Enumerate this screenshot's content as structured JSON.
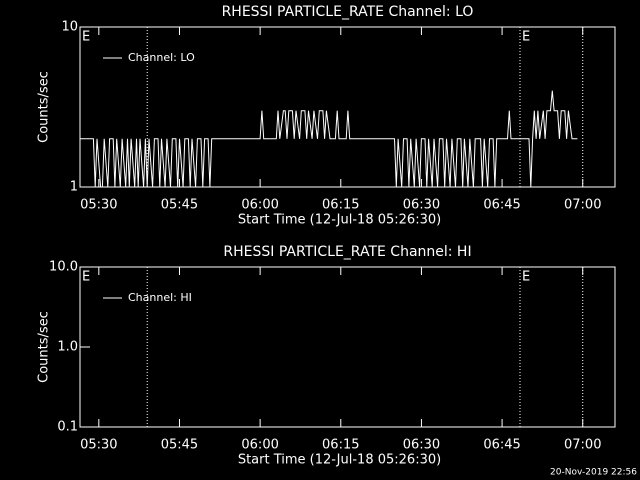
{
  "chart_data": [
    {
      "type": "line",
      "title": "RHESSI PARTICLE_RATE Channel: LO",
      "x_label": "Start Time (12-Jul-18 05:26:30)",
      "y_label": "Counts/sec",
      "xlim": [
        "05:26:30",
        "07:06:00"
      ],
      "xticks": [
        "05:30",
        "05:45",
        "06:00",
        "06:15",
        "06:30",
        "06:45",
        "07:00"
      ],
      "ylim": [
        1,
        10
      ],
      "yticks": [
        1,
        10
      ],
      "log_y": true,
      "legend": "upper left",
      "vlines": [
        "05:39:00",
        "06:48:20",
        "07:00:00"
      ],
      "annotations": [
        {
          "x": "05:26:30",
          "text": "E"
        },
        {
          "x": "06:48:20",
          "text": "E"
        }
      ],
      "series": [
        {
          "name": "Channel: LO",
          "color": "#ffffff",
          "x": [
            "05:26:30",
            "05:29:00",
            "05:29:20",
            "05:29:40",
            "05:30:20",
            "05:30:40",
            "05:31:00",
            "05:31:40",
            "05:32:00",
            "05:32:40",
            "05:33:00",
            "05:33:20",
            "05:34:00",
            "05:34:20",
            "05:35:00",
            "05:35:20",
            "05:35:40",
            "05:36:00",
            "05:36:40",
            "05:37:00",
            "05:37:20",
            "05:37:40",
            "05:38:20",
            "05:38:40",
            "05:39:00",
            "05:39:20",
            "05:40:00",
            "05:40:20",
            "05:41:00",
            "05:41:20",
            "05:41:40",
            "05:42:20",
            "05:42:40",
            "05:43:20",
            "05:43:40",
            "05:44:20",
            "05:44:40",
            "05:45:00",
            "05:45:40",
            "05:46:00",
            "05:46:40",
            "05:47:00",
            "05:47:20",
            "05:48:00",
            "05:48:20",
            "05:49:00",
            "05:49:20",
            "05:49:40",
            "05:50:20",
            "05:50:40",
            "05:51:00",
            "06:00:00",
            "06:00:20",
            "06:00:40",
            "06:03:00",
            "06:03:20",
            "06:03:40",
            "06:04:20",
            "06:04:40",
            "06:05:00",
            "06:05:20",
            "06:06:00",
            "06:06:20",
            "06:06:40",
            "06:07:20",
            "06:07:40",
            "06:08:20",
            "06:08:40",
            "06:09:00",
            "06:09:40",
            "06:10:00",
            "06:10:40",
            "06:11:00",
            "06:11:40",
            "06:12:00",
            "06:12:20",
            "06:13:00",
            "06:14:00",
            "06:14:20",
            "06:14:40",
            "06:16:00",
            "06:16:20",
            "06:16:40",
            "06:25:00",
            "06:25:20",
            "06:25:40",
            "06:26:20",
            "06:26:40",
            "06:27:20",
            "06:27:40",
            "06:28:00",
            "06:28:40",
            "06:29:00",
            "06:29:40",
            "06:30:00",
            "06:30:40",
            "06:31:00",
            "06:31:20",
            "06:32:00",
            "06:32:20",
            "06:33:00",
            "06:33:20",
            "06:34:00",
            "06:34:20",
            "06:34:40",
            "06:35:20",
            "06:35:40",
            "06:36:20",
            "06:36:40",
            "06:37:20",
            "06:37:40",
            "06:38:00",
            "06:38:40",
            "06:39:00",
            "06:39:40",
            "06:40:00",
            "06:41:00",
            "06:41:20",
            "06:41:40",
            "06:42:20",
            "06:42:40",
            "06:43:20",
            "06:43:40",
            "06:44:00",
            "06:46:00",
            "06:46:20",
            "06:46:40",
            "06:50:00",
            "06:50:20",
            "06:50:40",
            "06:51:00",
            "06:51:20",
            "06:51:40",
            "06:52:00",
            "06:52:40",
            "06:53:00",
            "06:53:20",
            "06:54:00",
            "06:54:20",
            "06:54:40",
            "06:55:20",
            "06:55:40",
            "06:56:00",
            "06:56:40",
            "06:57:00",
            "06:57:20",
            "06:58:00",
            "06:59:00"
          ],
          "values": [
            2,
            2,
            1,
            2,
            1,
            1,
            2,
            1,
            2,
            2,
            1,
            2,
            1,
            2,
            1,
            2,
            1,
            2,
            1,
            2,
            1,
            2,
            1,
            2,
            1,
            2,
            1,
            2,
            2,
            1,
            2,
            1,
            2,
            1,
            2,
            2,
            1,
            2,
            1,
            2,
            2,
            1,
            2,
            1,
            2,
            2,
            1,
            2,
            2,
            1,
            2,
            2,
            3,
            2,
            2,
            3,
            2,
            3,
            3,
            2,
            3,
            3,
            2,
            3,
            2,
            3,
            3,
            2,
            3,
            2,
            3,
            2,
            3,
            3,
            2,
            3,
            2,
            2,
            3,
            2,
            2,
            3,
            2,
            2,
            1,
            2,
            1,
            2,
            2,
            1,
            2,
            1,
            2,
            1,
            2,
            2,
            1,
            2,
            1,
            2,
            1,
            2,
            2,
            1,
            2,
            1,
            2,
            1,
            2,
            2,
            1,
            2,
            1,
            2,
            1,
            2,
            2,
            1,
            2,
            1,
            2,
            2,
            1,
            2,
            2,
            3,
            2,
            2,
            1,
            2,
            3,
            2,
            3,
            2,
            3,
            2,
            3,
            3,
            4,
            3,
            3,
            2,
            3,
            3,
            2,
            3,
            2,
            2
          ]
        }
      ]
    },
    {
      "type": "line",
      "title": "RHESSI PARTICLE_RATE Channel: HI",
      "x_label": "Start Time (12-Jul-18 05:26:30)",
      "y_label": "Counts/sec",
      "xlim": [
        "05:26:30",
        "07:06:00"
      ],
      "xticks": [
        "05:30",
        "05:45",
        "06:00",
        "06:15",
        "06:30",
        "06:45",
        "07:00"
      ],
      "ylim": [
        0.1,
        10
      ],
      "yticks": [
        0.1,
        {
          "value": 1,
          "label": "1.0"
        },
        {
          "value": 10,
          "label": "10.0"
        }
      ],
      "log_y": true,
      "legend": "upper left",
      "vlines": [
        "05:39:00",
        "06:48:20",
        "07:00:00"
      ],
      "annotations": [
        {
          "x": "05:26:30",
          "text": "E"
        },
        {
          "x": "06:48:20",
          "text": "E"
        }
      ],
      "series": [
        {
          "name": "Channel: HI",
          "color": "#ffffff",
          "x": [],
          "values": []
        }
      ],
      "footer": "20-Nov-2019 22:56"
    }
  ]
}
